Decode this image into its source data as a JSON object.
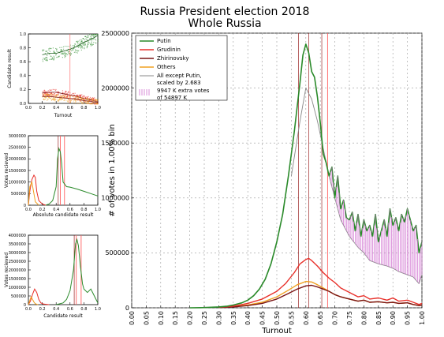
{
  "title_lines": [
    "Russia President election 2018",
    "Whole Russia"
  ],
  "colors": {
    "putin": "#2a8a2a",
    "grudinin": "#e8302a",
    "zhirinovsky": "#7a1414",
    "others": "#f0a020",
    "scaled": "#888888",
    "extra": "#d070d0",
    "vline_dark": "#8b0000",
    "vline_light": "#ff6060",
    "grid": "#999999"
  },
  "chart_data": [
    {
      "id": "main",
      "type": "line",
      "xlabel": "Turnout",
      "ylabel": "# of votes in 1.00% bin",
      "xlim": [
        0,
        1
      ],
      "ylim": [
        0,
        2500000
      ],
      "xticks": [
        "0.00",
        "0.05",
        "0.10",
        "0.15",
        "0.20",
        "0.25",
        "0.30",
        "0.35",
        "0.40",
        "0.45",
        "0.50",
        "0.55",
        "0.60",
        "0.65",
        "0.70",
        "0.75",
        "0.80",
        "0.85",
        "0.90",
        "0.95",
        "1.00"
      ],
      "yticks": [
        "0",
        "500000",
        "1000000",
        "1500000",
        "2000000",
        "2500000"
      ],
      "grid": true,
      "legend_position": "top-left",
      "legend": [
        "Putin",
        "Grudinin",
        "Zhirinovsky",
        "Others",
        "All except Putin,\nscaled by 2.683",
        "9947 K extra votes\nof 54897 K"
      ],
      "vlines": [
        {
          "x": 0.575,
          "style": "dark"
        },
        {
          "x": 0.61,
          "style": "dark"
        },
        {
          "x": 0.655,
          "style": "dark"
        },
        {
          "x": 0.675,
          "style": "light"
        }
      ],
      "series": [
        {
          "name": "Putin",
          "color": "putin",
          "width": 1.6,
          "x": [
            0.2,
            0.25,
            0.3,
            0.33,
            0.35,
            0.38,
            0.4,
            0.42,
            0.44,
            0.46,
            0.48,
            0.5,
            0.52,
            0.54,
            0.56,
            0.58,
            0.59,
            0.6,
            0.61,
            0.62,
            0.63,
            0.64,
            0.65,
            0.66,
            0.67,
            0.68,
            0.69,
            0.7,
            0.71,
            0.72,
            0.73,
            0.74,
            0.75,
            0.76,
            0.77,
            0.78,
            0.79,
            0.8,
            0.81,
            0.82,
            0.83,
            0.84,
            0.85,
            0.86,
            0.87,
            0.88,
            0.89,
            0.9,
            0.91,
            0.92,
            0.93,
            0.94,
            0.95,
            0.96,
            0.97,
            0.98,
            0.99,
            1.0
          ],
          "y": [
            0,
            2000,
            8000,
            15000,
            25000,
            45000,
            70000,
            110000,
            170000,
            260000,
            400000,
            600000,
            850000,
            1200000,
            1600000,
            2050000,
            2300000,
            2400000,
            2320000,
            2150000,
            2100000,
            1920000,
            1680000,
            1400000,
            1320000,
            1200000,
            1280000,
            1000000,
            1200000,
            900000,
            980000,
            820000,
            800000,
            870000,
            700000,
            850000,
            650000,
            800000,
            700000,
            750000,
            650000,
            850000,
            600000,
            700000,
            800000,
            650000,
            900000,
            750000,
            820000,
            700000,
            850000,
            780000,
            900000,
            800000,
            700000,
            750000,
            500000,
            600000
          ]
        },
        {
          "name": "Grudinin",
          "color": "grudinin",
          "width": 1.4,
          "x": [
            0.3,
            0.35,
            0.4,
            0.45,
            0.5,
            0.53,
            0.56,
            0.58,
            0.6,
            0.61,
            0.62,
            0.64,
            0.66,
            0.68,
            0.7,
            0.72,
            0.75,
            0.78,
            0.8,
            0.82,
            0.85,
            0.88,
            0.9,
            0.92,
            0.95,
            0.97,
            0.99,
            1.0
          ],
          "y": [
            5000,
            15000,
            40000,
            80000,
            150000,
            220000,
            320000,
            400000,
            440000,
            450000,
            430000,
            380000,
            320000,
            270000,
            230000,
            180000,
            140000,
            100000,
            110000,
            80000,
            90000,
            70000,
            90000,
            60000,
            70000,
            50000,
            30000,
            40000
          ]
        },
        {
          "name": "Zhirinovsky",
          "color": "zhirinovsky",
          "width": 1.4,
          "x": [
            0.3,
            0.35,
            0.4,
            0.45,
            0.5,
            0.54,
            0.57,
            0.6,
            0.62,
            0.64,
            0.66,
            0.68,
            0.7,
            0.72,
            0.75,
            0.78,
            0.8,
            0.82,
            0.85,
            0.88,
            0.9,
            0.92,
            0.95,
            0.97,
            0.99,
            1.0
          ],
          "y": [
            3000,
            8000,
            20000,
            40000,
            80000,
            130000,
            170000,
            200000,
            205000,
            190000,
            170000,
            150000,
            120000,
            100000,
            80000,
            60000,
            70000,
            50000,
            55000,
            45000,
            50000,
            40000,
            45000,
            30000,
            20000,
            25000
          ]
        },
        {
          "name": "Others",
          "color": "others",
          "width": 1.4,
          "x": [
            0.3,
            0.35,
            0.4,
            0.45,
            0.5,
            0.54,
            0.57,
            0.6,
            0.62,
            0.64,
            0.66,
            0.68,
            0.7,
            0.72,
            0.75,
            0.78,
            0.8,
            0.82,
            0.85,
            0.88,
            0.9,
            0.92,
            0.95,
            0.97,
            0.99,
            1.0
          ],
          "y": [
            4000,
            10000,
            25000,
            50000,
            100000,
            160000,
            210000,
            240000,
            235000,
            210000,
            180000,
            150000,
            120000,
            100000,
            80000,
            60000,
            70000,
            50000,
            55000,
            45000,
            50000,
            40000,
            45000,
            30000,
            20000,
            25000
          ]
        },
        {
          "name": "All except Putin, scaled by 2.683",
          "color": "scaled",
          "width": 0.9,
          "x": [
            0.55,
            0.58,
            0.6,
            0.62,
            0.64,
            0.66,
            0.68,
            0.7,
            0.72,
            0.75,
            0.78,
            0.8,
            0.82,
            0.85,
            0.88,
            0.9,
            0.92,
            0.95,
            0.97,
            0.99,
            1.0
          ],
          "y": [
            1200000,
            1700000,
            2000000,
            1900000,
            1700000,
            1450000,
            1200000,
            1000000,
            800000,
            650000,
            550000,
            500000,
            430000,
            400000,
            380000,
            360000,
            330000,
            300000,
            280000,
            220000,
            300000
          ]
        }
      ]
    },
    {
      "id": "scatter",
      "type": "scatter",
      "xlabel": "Turnout",
      "ylabel": "Candidate result",
      "xlim": [
        0,
        1
      ],
      "ylim": [
        0,
        1
      ],
      "xticks": [
        "0.0",
        "0.2",
        "0.4",
        "0.6",
        "0.8",
        "1.0"
      ],
      "yticks": [
        "0.0",
        "0.2",
        "0.4",
        "0.6",
        "0.8",
        "1.0"
      ],
      "series": [
        {
          "name": "Putin",
          "color": "putin",
          "x": [
            0.2,
            0.3,
            0.4,
            0.5,
            0.6,
            0.7,
            0.8,
            0.9,
            1.0
          ],
          "y": [
            0.7,
            0.72,
            0.72,
            0.75,
            0.78,
            0.82,
            0.88,
            0.92,
            0.98
          ]
        },
        {
          "name": "Grudinin",
          "color": "grudinin",
          "x": [
            0.2,
            0.3,
            0.4,
            0.5,
            0.6,
            0.7,
            0.8,
            0.9,
            1.0
          ],
          "y": [
            0.15,
            0.16,
            0.16,
            0.14,
            0.12,
            0.1,
            0.07,
            0.05,
            0.02
          ]
        },
        {
          "name": "Others",
          "color": "others",
          "x": [
            0.2,
            0.3,
            0.4,
            0.5,
            0.6,
            0.7,
            0.8,
            0.9,
            1.0
          ],
          "y": [
            0.1,
            0.1,
            0.09,
            0.08,
            0.07,
            0.06,
            0.04,
            0.03,
            0.01
          ]
        }
      ]
    },
    {
      "id": "absolute",
      "type": "line",
      "xlabel": "Absolute candidate result",
      "ylabel": "Votes recieved",
      "xlim": [
        0,
        1
      ],
      "ylim": [
        0,
        3000000
      ],
      "xticks": [
        "0.0",
        "0.2",
        "0.4",
        "0.6",
        "0.8",
        "1.0"
      ],
      "yticks": [
        "0",
        "500000",
        "1000000",
        "1500000",
        "2000000",
        "2500000",
        "3000000"
      ],
      "vlines": [
        {
          "x": 0.43,
          "style": "dark"
        },
        {
          "x": 0.46,
          "style": "light"
        },
        {
          "x": 0.52,
          "style": "light"
        }
      ],
      "series": [
        {
          "name": "Putin",
          "color": "putin",
          "x": [
            0.25,
            0.3,
            0.35,
            0.4,
            0.42,
            0.44,
            0.46,
            0.48,
            0.5,
            0.55,
            0.6,
            0.7,
            0.8,
            0.9,
            1.0
          ],
          "y": [
            0,
            50000,
            200000,
            800000,
            2000000,
            2450000,
            2300000,
            1800000,
            1000000,
            800000,
            780000,
            700000,
            600000,
            500000,
            400000
          ]
        },
        {
          "name": "Grudinin",
          "color": "grudinin",
          "x": [
            0.0,
            0.02,
            0.05,
            0.08,
            0.1,
            0.12,
            0.15,
            0.2,
            0.25
          ],
          "y": [
            0,
            600000,
            1100000,
            1300000,
            1200000,
            600000,
            200000,
            50000,
            0
          ]
        },
        {
          "name": "Others",
          "color": "others",
          "x": [
            0.0,
            0.02,
            0.05,
            0.08,
            0.1,
            0.15
          ],
          "y": [
            0,
            800000,
            1000000,
            500000,
            150000,
            0
          ]
        }
      ]
    },
    {
      "id": "relative",
      "type": "line",
      "xlabel": "Candidate result",
      "ylabel": "Votes recieved",
      "xlim": [
        0,
        1
      ],
      "ylim": [
        0,
        4000000
      ],
      "xticks": [
        "0.0",
        "0.2",
        "0.4",
        "0.6",
        "0.8",
        "1.0"
      ],
      "yticks": [
        "0",
        "500000",
        "1000000",
        "1500000",
        "2000000",
        "2500000",
        "3000000",
        "3500000",
        "4000000"
      ],
      "vlines": [
        {
          "x": 0.66,
          "style": "dark"
        },
        {
          "x": 0.69,
          "style": "light"
        },
        {
          "x": 0.76,
          "style": "light"
        }
      ],
      "series": [
        {
          "name": "Putin",
          "color": "putin",
          "x": [
            0.4,
            0.5,
            0.55,
            0.6,
            0.65,
            0.68,
            0.7,
            0.72,
            0.75,
            0.78,
            0.8,
            0.85,
            0.9,
            0.95,
            1.0
          ],
          "y": [
            0,
            100000,
            300000,
            800000,
            2000000,
            3500000,
            3750000,
            3400000,
            2200000,
            1200000,
            900000,
            700000,
            900000,
            500000,
            100000
          ]
        },
        {
          "name": "Grudinin",
          "color": "grudinin",
          "x": [
            0.0,
            0.03,
            0.06,
            0.09,
            0.12,
            0.15,
            0.18,
            0.22,
            0.3
          ],
          "y": [
            0,
            200000,
            600000,
            900000,
            700000,
            300000,
            100000,
            30000,
            0
          ]
        },
        {
          "name": "Others",
          "color": "others",
          "x": [
            0.0,
            0.02,
            0.04,
            0.06,
            0.08,
            0.1,
            0.14
          ],
          "y": [
            0,
            250000,
            450000,
            300000,
            150000,
            50000,
            0
          ]
        }
      ]
    }
  ]
}
